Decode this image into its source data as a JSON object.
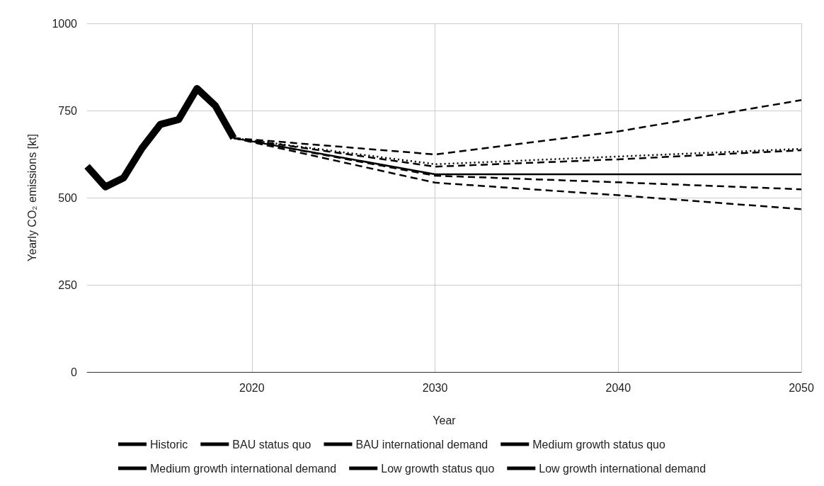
{
  "chart_data": {
    "type": "line",
    "xlabel": "Year",
    "ylabel": "Yearly CO₂ emissions [kt]",
    "xlim": [
      2011,
      2050
    ],
    "xticks": [
      2020,
      2030,
      2040,
      2050
    ],
    "ylim": [
      0,
      1000
    ],
    "yticks": [
      0,
      250,
      500,
      750,
      1000
    ],
    "grid": true,
    "legend": "bottom",
    "marker": "none",
    "series": [
      {
        "name": "Historic",
        "color": "#000000",
        "line_style": "solid",
        "x": [
          2011,
          2012,
          2013,
          2014,
          2015,
          2016,
          2017,
          2018,
          2019
        ],
        "values": [
          590,
          531,
          557,
          642,
          710,
          724,
          813,
          764,
          671
        ]
      },
      {
        "name": "BAU status quo",
        "color": "#000000",
        "line_style": "dotted",
        "x": [
          2019,
          2030,
          2040,
          2050
        ],
        "values": [
          671,
          596,
          618,
          640
        ]
      },
      {
        "name": "BAU international demand",
        "color": "#000000",
        "line_style": "dashed",
        "x": [
          2019,
          2030,
          2040,
          2050
        ],
        "values": [
          671,
          624,
          690,
          780
        ]
      },
      {
        "name": "Medium growth status quo",
        "color": "#000000",
        "line_style": "dashed",
        "x": [
          2019,
          2030,
          2040,
          2050
        ],
        "values": [
          671,
          589,
          610,
          636
        ]
      },
      {
        "name": "Medium growth international demand",
        "color": "#000000",
        "line_style": "solid",
        "x": [
          2019,
          2030,
          2040,
          2050
        ],
        "values": [
          671,
          567,
          567,
          567
        ]
      },
      {
        "name": "Low growth status quo",
        "color": "#000000",
        "line_style": "dashed",
        "x": [
          2019,
          2030,
          2040,
          2050
        ],
        "values": [
          671,
          563,
          544,
          524
        ]
      },
      {
        "name": "Low growth international demand",
        "color": "#000000",
        "line_style": "dashed",
        "x": [
          2019,
          2030,
          2040,
          2050
        ],
        "values": [
          671,
          543,
          507,
          467
        ]
      }
    ]
  }
}
